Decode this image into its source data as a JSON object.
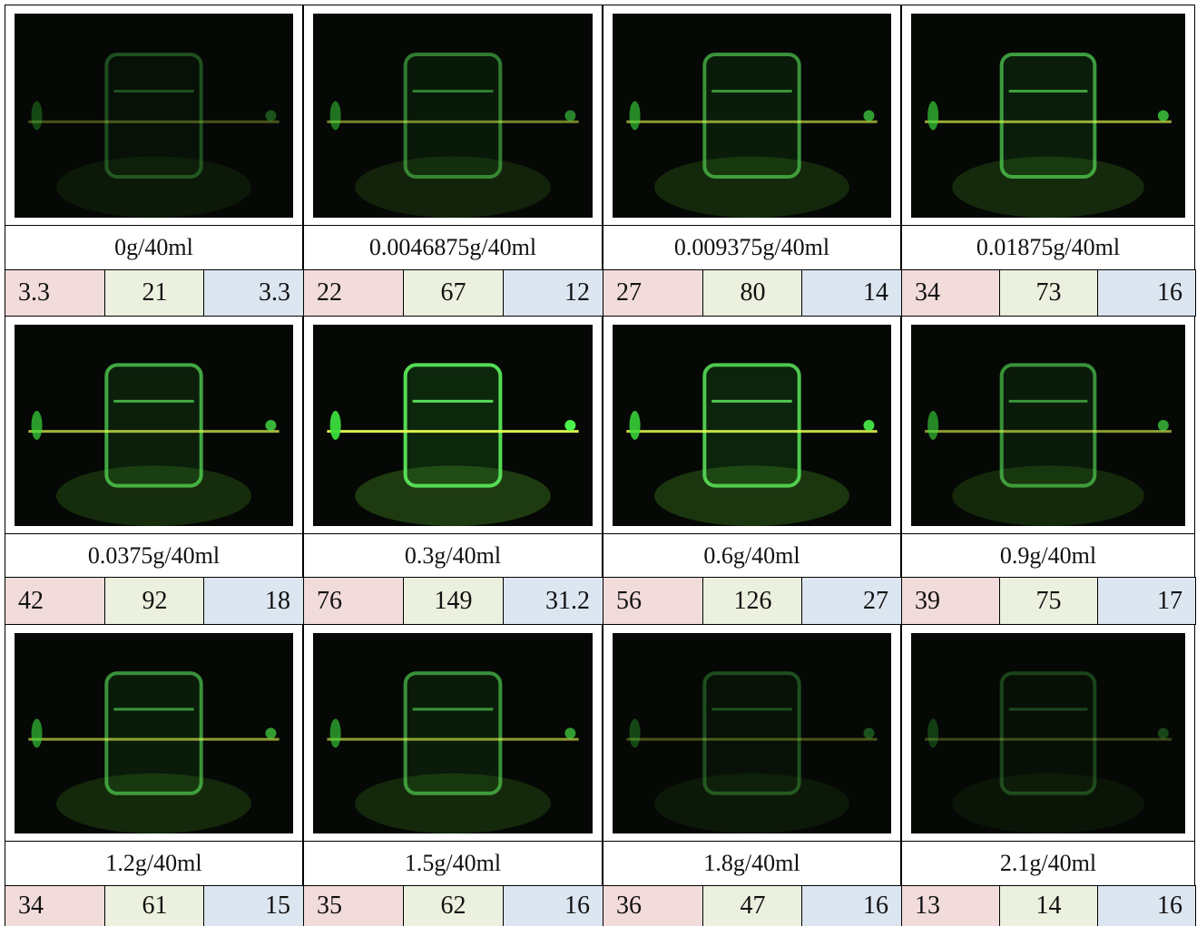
{
  "panels": [
    {
      "label": "0g/40ml",
      "values": [
        3.3,
        21,
        3.3
      ]
    },
    {
      "label": "0.0046875g/40ml",
      "values": [
        22,
        67,
        12
      ]
    },
    {
      "label": "0.009375g/40ml",
      "values": [
        27,
        80,
        14
      ]
    },
    {
      "label": "0.01875g/40ml",
      "values": [
        34,
        73,
        16
      ]
    },
    {
      "label": "0.0375g/40ml",
      "values": [
        42,
        92,
        18
      ]
    },
    {
      "label": "0.3g/40ml",
      "values": [
        76,
        149,
        31.2
      ]
    },
    {
      "label": "0.6g/40ml",
      "values": [
        56,
        126,
        27
      ]
    },
    {
      "label": "0.9g/40ml",
      "values": [
        39,
        75,
        17
      ]
    },
    {
      "label": "1.2g/40ml",
      "values": [
        34,
        61,
        15
      ]
    },
    {
      "label": "1.5g/40ml",
      "values": [
        35,
        62,
        16
      ]
    },
    {
      "label": "1.8g/40ml",
      "values": [
        36,
        47,
        16
      ]
    },
    {
      "label": "2.1g/40ml",
      "values": [
        13,
        14,
        16
      ]
    }
  ]
}
